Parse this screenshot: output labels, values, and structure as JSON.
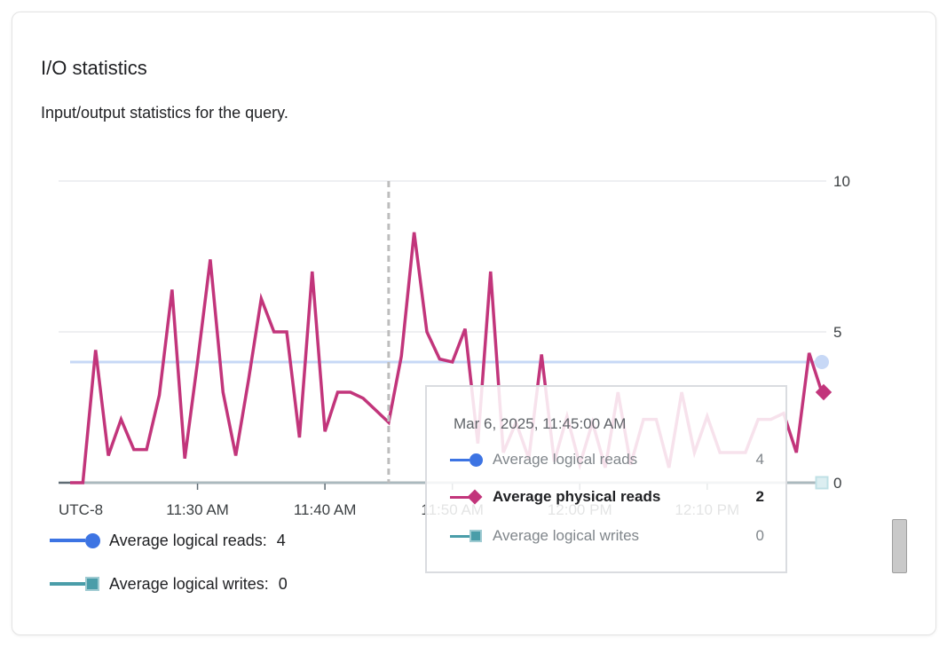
{
  "card": {
    "title": "I/O statistics",
    "subtitle": "Input/output statistics for the query."
  },
  "colors": {
    "physical_reads_pink": "#C2357B",
    "logical_reads_blue": "#3D74E3",
    "logical_writes_teal": "#4A9DA9",
    "logical_writes_teal_border": "#9FCBD2",
    "faded_blue": "#C7D8F6",
    "faded_teal_fill": "#DCEEF1",
    "faded_teal_border": "#BFE0E5",
    "grid": "#E8EAED",
    "axis": "#5F6B73",
    "tick_label": "#3C4043",
    "dashed_guide": "#BDBDBD"
  },
  "chart_data": {
    "type": "line",
    "title": "I/O statistics",
    "x": [
      "11:20 AM",
      "11:21 AM",
      "11:22 AM",
      "11:23 AM",
      "11:24 AM",
      "11:25 AM",
      "11:26 AM",
      "11:27 AM",
      "11:28 AM",
      "11:29 AM",
      "11:30 AM",
      "11:31 AM",
      "11:32 AM",
      "11:33 AM",
      "11:34 AM",
      "11:35 AM",
      "11:36 AM",
      "11:37 AM",
      "11:38 AM",
      "11:39 AM",
      "11:40 AM",
      "11:41 AM",
      "11:42 AM",
      "11:43 AM",
      "11:44 AM",
      "11:45 AM",
      "11:46 AM",
      "11:47 AM",
      "11:48 AM",
      "11:49 AM",
      "11:50 AM",
      "11:51 AM",
      "11:52 AM",
      "11:53 AM",
      "11:54 AM",
      "11:55 AM",
      "11:56 AM",
      "11:57 AM",
      "11:58 AM",
      "11:59 AM",
      "12:00 PM",
      "12:01 PM",
      "12:02 PM",
      "12:03 PM",
      "12:04 PM",
      "12:05 PM",
      "12:06 PM",
      "12:07 PM",
      "12:08 PM",
      "12:09 PM",
      "12:10 PM",
      "12:11 PM",
      "12:12 PM",
      "12:13 PM",
      "12:14 PM",
      "12:15 PM",
      "12:16 PM",
      "12:17 PM",
      "12:18 PM",
      "12:19 PM"
    ],
    "series": [
      {
        "name": "Average logical reads",
        "type": "constant",
        "value": 4,
        "color_key": "faded_blue",
        "marker": "circle",
        "faded": true
      },
      {
        "name": "Average physical reads",
        "type": "values",
        "color_key": "physical_reads_pink",
        "marker": "diamond",
        "faded": false,
        "values": [
          0,
          0,
          4.4,
          0.9,
          2.1,
          1.1,
          1.1,
          2.9,
          6.4,
          0.8,
          4.0,
          7.4,
          3.0,
          0.9,
          3.4,
          6.1,
          5.0,
          5.0,
          1.5,
          7.0,
          1.7,
          3.0,
          3.0,
          2.8,
          2.4,
          2.0,
          4.2,
          8.3,
          5.0,
          4.1,
          4.0,
          5.1,
          1.3,
          7.0,
          1.0,
          2.0,
          0.8,
          4.25,
          0.7,
          2.2,
          0.6,
          2.0,
          0.5,
          3.0,
          0.6,
          2.1,
          2.1,
          0.5,
          3.0,
          1.0,
          2.2,
          1.0,
          1.0,
          1.0,
          2.1,
          2.1,
          2.3,
          1.0,
          4.3,
          3.0
        ]
      },
      {
        "name": "Average logical writes",
        "type": "constant",
        "value": 0,
        "color_key": "faded_teal_fill",
        "marker": "square",
        "faded": true
      }
    ],
    "x_axis": {
      "timezone_label": "UTC-8",
      "tick_indices": [
        10,
        20,
        30,
        40,
        50
      ]
    },
    "y_axis": {
      "ticks": [
        0,
        5,
        10
      ],
      "range": [
        0,
        10
      ],
      "position": "right"
    },
    "grid": "horizontal-only",
    "legend_position": "bottom-left",
    "hover": {
      "index": 25,
      "datetime_label": "Mar 6, 2025, 11:45:00 AM"
    }
  },
  "tooltip": {
    "date": "Mar 6, 2025, 11:45:00 AM",
    "rows": [
      {
        "label": "Average logical reads",
        "value": "4",
        "emphasized": false
      },
      {
        "label": "Average physical reads",
        "value": "2",
        "emphasized": true
      },
      {
        "label": "Average logical writes",
        "value": "0",
        "emphasized": false
      }
    ]
  },
  "legend": {
    "items": [
      {
        "label": "Average logical reads:",
        "value": "4"
      },
      {
        "label": "Average logical writes:",
        "value": "0"
      }
    ]
  }
}
